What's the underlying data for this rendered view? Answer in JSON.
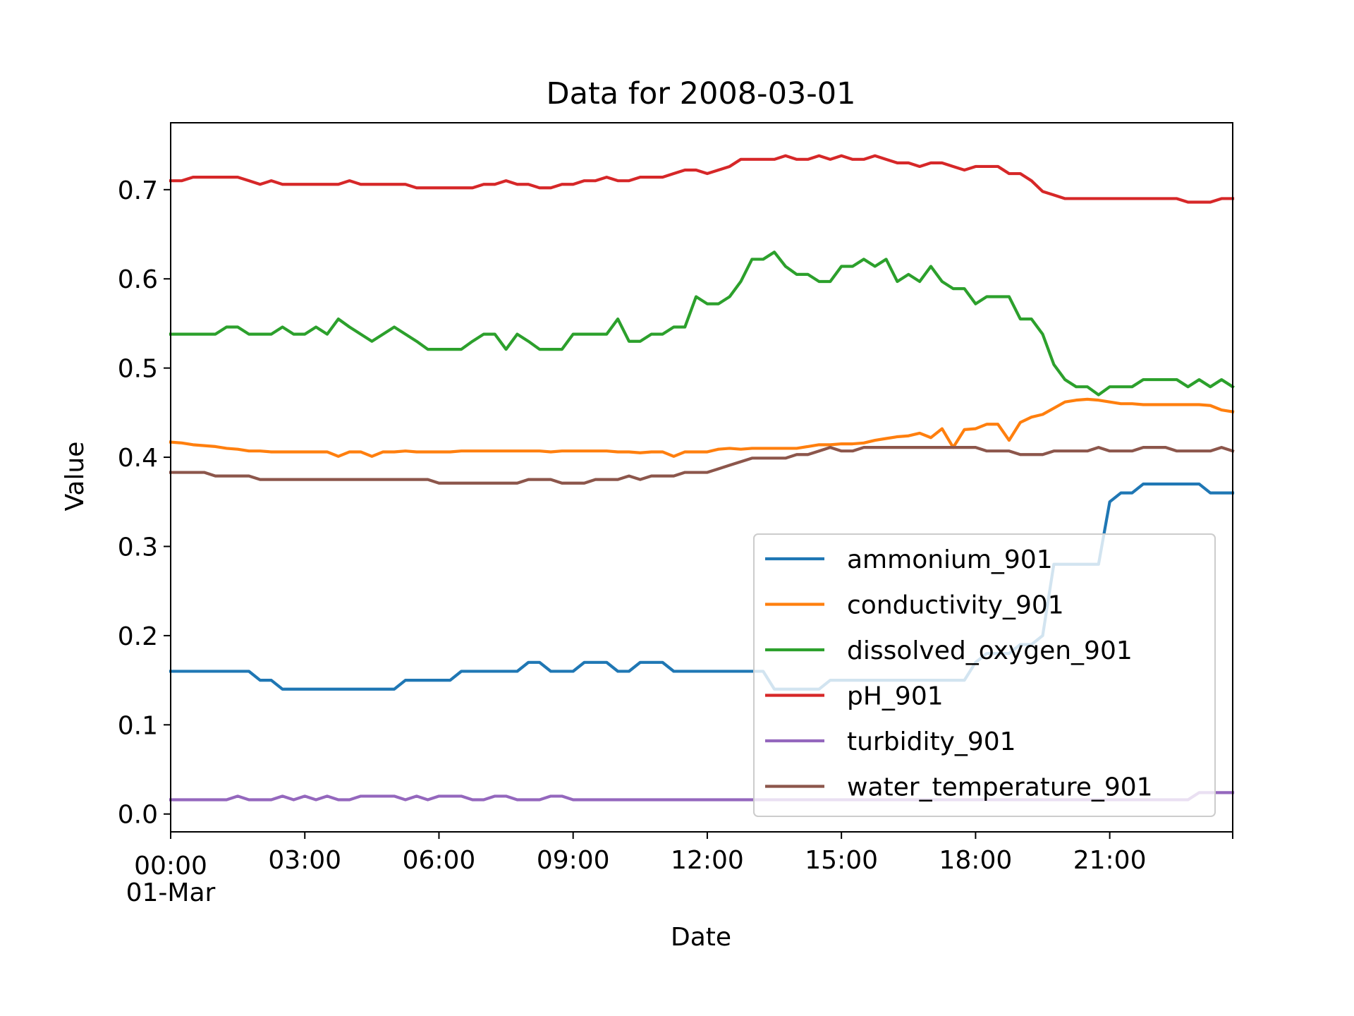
{
  "chart_data": {
    "type": "line",
    "title": "Data for 2008-03-01",
    "xlabel": "Date",
    "ylabel": "Value",
    "xlim": [
      "2008-03-01 00:00",
      "2008-03-01 23:45"
    ],
    "ylim": [
      -0.02,
      0.775
    ],
    "x_step_minutes": 15,
    "x_start": "2008-03-01 00:00",
    "x_ticks": [
      {
        "time": "00:00",
        "label": "00:00",
        "sublabel": "01-Mar"
      },
      {
        "time": "03:00",
        "label": "03:00"
      },
      {
        "time": "06:00",
        "label": "06:00"
      },
      {
        "time": "09:00",
        "label": "09:00"
      },
      {
        "time": "12:00",
        "label": "12:00"
      },
      {
        "time": "15:00",
        "label": "15:00"
      },
      {
        "time": "18:00",
        "label": "18:00"
      },
      {
        "time": "21:00",
        "label": "21:00"
      }
    ],
    "y_ticks": [
      {
        "value": 0.0,
        "label": "0.0"
      },
      {
        "value": 0.1,
        "label": "0.1"
      },
      {
        "value": 0.2,
        "label": "0.2"
      },
      {
        "value": 0.3,
        "label": "0.3"
      },
      {
        "value": 0.4,
        "label": "0.4"
      },
      {
        "value": 0.5,
        "label": "0.5"
      },
      {
        "value": 0.6,
        "label": "0.6"
      },
      {
        "value": 0.7,
        "label": "0.7"
      }
    ],
    "grid": false,
    "legend_position": "lower-right",
    "series": [
      {
        "name": "ammonium_901",
        "color": "#1f77b4",
        "values": [
          0.16,
          0.16,
          0.16,
          0.16,
          0.16,
          0.16,
          0.16,
          0.16,
          0.15,
          0.15,
          0.14,
          0.14,
          0.14,
          0.14,
          0.14,
          0.14,
          0.14,
          0.14,
          0.14,
          0.14,
          0.14,
          0.15,
          0.15,
          0.15,
          0.15,
          0.15,
          0.16,
          0.16,
          0.16,
          0.16,
          0.16,
          0.16,
          0.17,
          0.17,
          0.16,
          0.16,
          0.16,
          0.17,
          0.17,
          0.17,
          0.16,
          0.16,
          0.17,
          0.17,
          0.17,
          0.16,
          0.16,
          0.16,
          0.16,
          0.16,
          0.16,
          0.16,
          0.16,
          0.16,
          0.14,
          0.14,
          0.14,
          0.14,
          0.14,
          0.15,
          0.15,
          0.15,
          0.15,
          0.15,
          0.15,
          0.15,
          0.15,
          0.15,
          0.15,
          0.15,
          0.15,
          0.15,
          0.17,
          0.18,
          0.18,
          0.18,
          0.19,
          0.19,
          0.2,
          0.28,
          0.28,
          0.28,
          0.28,
          0.28,
          0.35,
          0.36,
          0.36,
          0.37,
          0.37,
          0.37,
          0.37,
          0.37,
          0.37,
          0.36,
          0.36,
          0.36
        ]
      },
      {
        "name": "conductivity_901",
        "color": "#ff7f0e",
        "values": [
          0.417,
          0.416,
          0.414,
          0.413,
          0.412,
          0.41,
          0.409,
          0.407,
          0.407,
          0.406,
          0.406,
          0.406,
          0.406,
          0.406,
          0.406,
          0.401,
          0.406,
          0.406,
          0.401,
          0.406,
          0.406,
          0.407,
          0.406,
          0.406,
          0.406,
          0.406,
          0.407,
          0.407,
          0.407,
          0.407,
          0.407,
          0.407,
          0.407,
          0.407,
          0.406,
          0.407,
          0.407,
          0.407,
          0.407,
          0.407,
          0.406,
          0.406,
          0.405,
          0.406,
          0.406,
          0.401,
          0.406,
          0.406,
          0.406,
          0.409,
          0.41,
          0.409,
          0.41,
          0.41,
          0.41,
          0.41,
          0.41,
          0.412,
          0.414,
          0.414,
          0.415,
          0.415,
          0.416,
          0.419,
          0.421,
          0.423,
          0.424,
          0.427,
          0.422,
          0.432,
          0.411,
          0.431,
          0.432,
          0.437,
          0.437,
          0.419,
          0.439,
          0.445,
          0.448,
          0.455,
          0.462,
          0.464,
          0.465,
          0.464,
          0.462,
          0.46,
          0.46,
          0.459,
          0.459,
          0.459,
          0.459,
          0.459,
          0.459,
          0.458,
          0.453,
          0.451
        ]
      },
      {
        "name": "dissolved_oxygen_901",
        "color": "#2ca02c",
        "values": [
          0.538,
          0.538,
          0.538,
          0.538,
          0.538,
          0.546,
          0.546,
          0.538,
          0.538,
          0.538,
          0.546,
          0.538,
          0.538,
          0.546,
          0.538,
          0.555,
          0.546,
          0.538,
          0.53,
          0.538,
          0.546,
          0.538,
          0.53,
          0.521,
          0.521,
          0.521,
          0.521,
          0.53,
          0.538,
          0.538,
          0.521,
          0.538,
          0.53,
          0.521,
          0.521,
          0.521,
          0.538,
          0.538,
          0.538,
          0.538,
          0.555,
          0.53,
          0.53,
          0.538,
          0.538,
          0.546,
          0.546,
          0.58,
          0.572,
          0.572,
          0.58,
          0.597,
          0.622,
          0.622,
          0.63,
          0.614,
          0.605,
          0.605,
          0.597,
          0.597,
          0.614,
          0.614,
          0.622,
          0.614,
          0.622,
          0.597,
          0.605,
          0.597,
          0.614,
          0.597,
          0.589,
          0.589,
          0.572,
          0.58,
          0.58,
          0.58,
          0.555,
          0.555,
          0.538,
          0.504,
          0.487,
          0.479,
          0.479,
          0.47,
          0.479,
          0.479,
          0.479,
          0.487,
          0.487,
          0.487,
          0.487,
          0.479,
          0.487,
          0.479,
          0.487,
          0.479
        ]
      },
      {
        "name": "pH_901",
        "color": "#d62728",
        "values": [
          0.71,
          0.71,
          0.714,
          0.714,
          0.714,
          0.714,
          0.714,
          0.71,
          0.706,
          0.71,
          0.706,
          0.706,
          0.706,
          0.706,
          0.706,
          0.706,
          0.71,
          0.706,
          0.706,
          0.706,
          0.706,
          0.706,
          0.702,
          0.702,
          0.702,
          0.702,
          0.702,
          0.702,
          0.706,
          0.706,
          0.71,
          0.706,
          0.706,
          0.702,
          0.702,
          0.706,
          0.706,
          0.71,
          0.71,
          0.714,
          0.71,
          0.71,
          0.714,
          0.714,
          0.714,
          0.718,
          0.722,
          0.722,
          0.718,
          0.722,
          0.726,
          0.734,
          0.734,
          0.734,
          0.734,
          0.738,
          0.734,
          0.734,
          0.738,
          0.734,
          0.738,
          0.734,
          0.734,
          0.738,
          0.734,
          0.73,
          0.73,
          0.726,
          0.73,
          0.73,
          0.726,
          0.722,
          0.726,
          0.726,
          0.726,
          0.718,
          0.718,
          0.71,
          0.698,
          0.694,
          0.69,
          0.69,
          0.69,
          0.69,
          0.69,
          0.69,
          0.69,
          0.69,
          0.69,
          0.69,
          0.69,
          0.686,
          0.686,
          0.686,
          0.69,
          0.69
        ]
      },
      {
        "name": "turbidity_901",
        "color": "#9467bd",
        "values": [
          0.016,
          0.016,
          0.016,
          0.016,
          0.016,
          0.016,
          0.02,
          0.016,
          0.016,
          0.016,
          0.02,
          0.016,
          0.02,
          0.016,
          0.02,
          0.016,
          0.016,
          0.02,
          0.02,
          0.02,
          0.02,
          0.016,
          0.02,
          0.016,
          0.02,
          0.02,
          0.02,
          0.016,
          0.016,
          0.02,
          0.02,
          0.016,
          0.016,
          0.016,
          0.02,
          0.02,
          0.016,
          0.016,
          0.016,
          0.016,
          0.016,
          0.016,
          0.016,
          0.016,
          0.016,
          0.016,
          0.016,
          0.016,
          0.016,
          0.016,
          0.016,
          0.016,
          0.016,
          0.016,
          0.016,
          0.016,
          0.016,
          0.016,
          0.016,
          0.016,
          0.016,
          0.016,
          0.016,
          0.016,
          0.016,
          0.016,
          0.016,
          0.016,
          0.016,
          0.016,
          0.016,
          0.016,
          0.016,
          0.016,
          0.016,
          0.016,
          0.016,
          0.016,
          0.016,
          0.016,
          0.016,
          0.016,
          0.016,
          0.016,
          0.016,
          0.016,
          0.016,
          0.016,
          0.016,
          0.016,
          0.016,
          0.016,
          0.024,
          0.024,
          0.024,
          0.024
        ]
      },
      {
        "name": "water_temperature_901",
        "color": "#8c564b",
        "values": [
          0.383,
          0.383,
          0.383,
          0.383,
          0.379,
          0.379,
          0.379,
          0.379,
          0.375,
          0.375,
          0.375,
          0.375,
          0.375,
          0.375,
          0.375,
          0.375,
          0.375,
          0.375,
          0.375,
          0.375,
          0.375,
          0.375,
          0.375,
          0.375,
          0.371,
          0.371,
          0.371,
          0.371,
          0.371,
          0.371,
          0.371,
          0.371,
          0.375,
          0.375,
          0.375,
          0.371,
          0.371,
          0.371,
          0.375,
          0.375,
          0.375,
          0.379,
          0.375,
          0.379,
          0.379,
          0.379,
          0.383,
          0.383,
          0.383,
          0.387,
          0.391,
          0.395,
          0.399,
          0.399,
          0.399,
          0.399,
          0.403,
          0.403,
          0.407,
          0.411,
          0.407,
          0.407,
          0.411,
          0.411,
          0.411,
          0.411,
          0.411,
          0.411,
          0.411,
          0.411,
          0.411,
          0.411,
          0.411,
          0.407,
          0.407,
          0.407,
          0.403,
          0.403,
          0.403,
          0.407,
          0.407,
          0.407,
          0.407,
          0.411,
          0.407,
          0.407,
          0.407,
          0.411,
          0.411,
          0.411,
          0.407,
          0.407,
          0.407,
          0.407,
          0.411,
          0.407
        ]
      }
    ]
  }
}
